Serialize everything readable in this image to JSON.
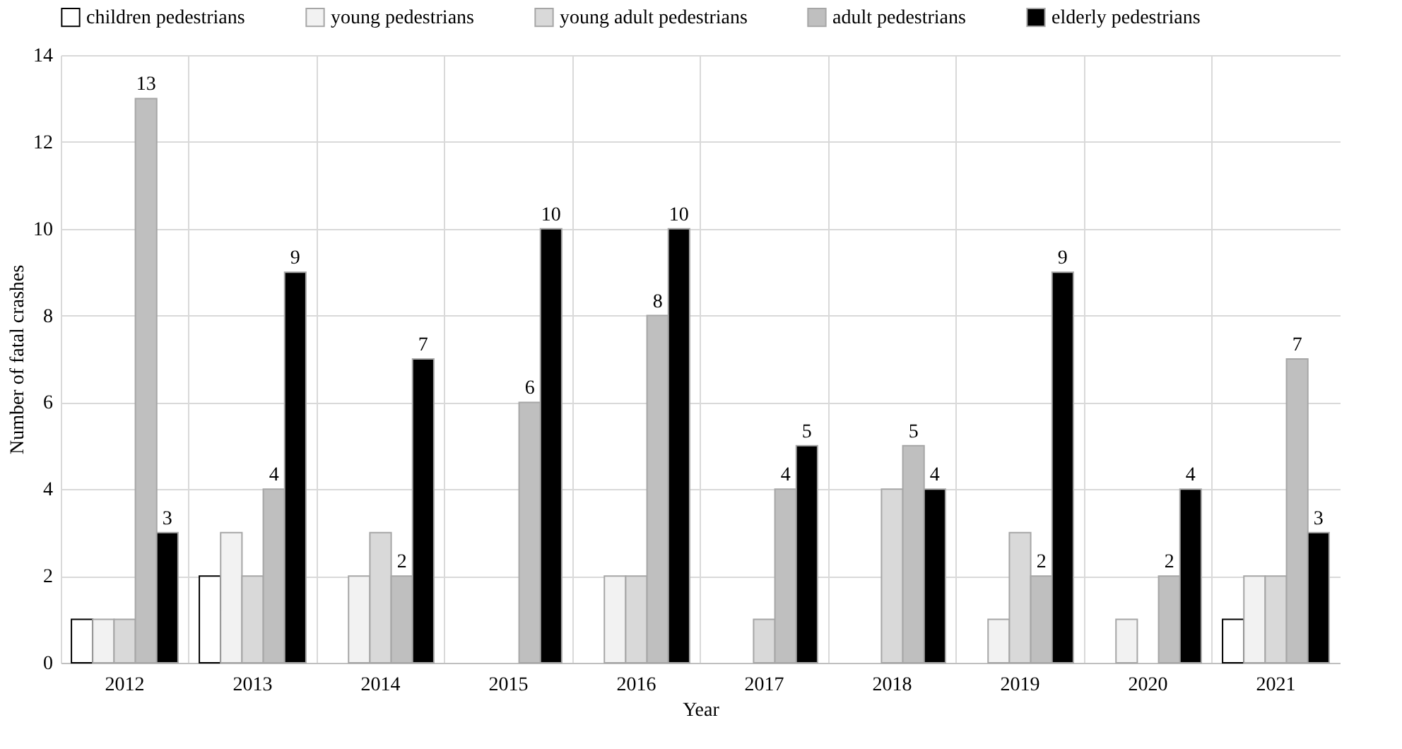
{
  "chart_data": {
    "type": "bar",
    "xlabel": "Year",
    "ylabel": "Number of fatal crashes",
    "categories": [
      "2012",
      "2013",
      "2014",
      "2015",
      "2016",
      "2017",
      "2018",
      "2019",
      "2020",
      "2021"
    ],
    "series": [
      {
        "name": "children pedestrians",
        "color": "#ffffff",
        "values": [
          1,
          2,
          0,
          0,
          0,
          0,
          0,
          0,
          0,
          1
        ]
      },
      {
        "name": "young pedestrians",
        "color": "#f2f2f2",
        "values": [
          1,
          3,
          2,
          0,
          2,
          0,
          0,
          1,
          1,
          2
        ]
      },
      {
        "name": "young adult pedestrians",
        "color": "#d9d9d9",
        "values": [
          1,
          2,
          3,
          0,
          2,
          1,
          4,
          3,
          0,
          2
        ]
      },
      {
        "name": "adult pedestrians",
        "color": "#bfbfbf",
        "values": [
          13,
          4,
          2,
          6,
          8,
          4,
          5,
          2,
          2,
          7
        ],
        "value_labels": [
          "13",
          "4",
          "2",
          "6",
          "8",
          "4",
          "5",
          "2",
          "2",
          "7"
        ]
      },
      {
        "name": "elderly pedestrians",
        "color": "#000000",
        "values": [
          3,
          9,
          7,
          10,
          10,
          5,
          4,
          9,
          4,
          3
        ],
        "value_labels": [
          "3",
          "9",
          "7",
          "10",
          "10",
          "5",
          "4",
          "9",
          "4",
          "3"
        ]
      }
    ],
    "ylim": [
      0,
      14
    ],
    "yticks": [
      0,
      2,
      4,
      6,
      8,
      10,
      12,
      14
    ],
    "grid": true,
    "legend": "top"
  }
}
